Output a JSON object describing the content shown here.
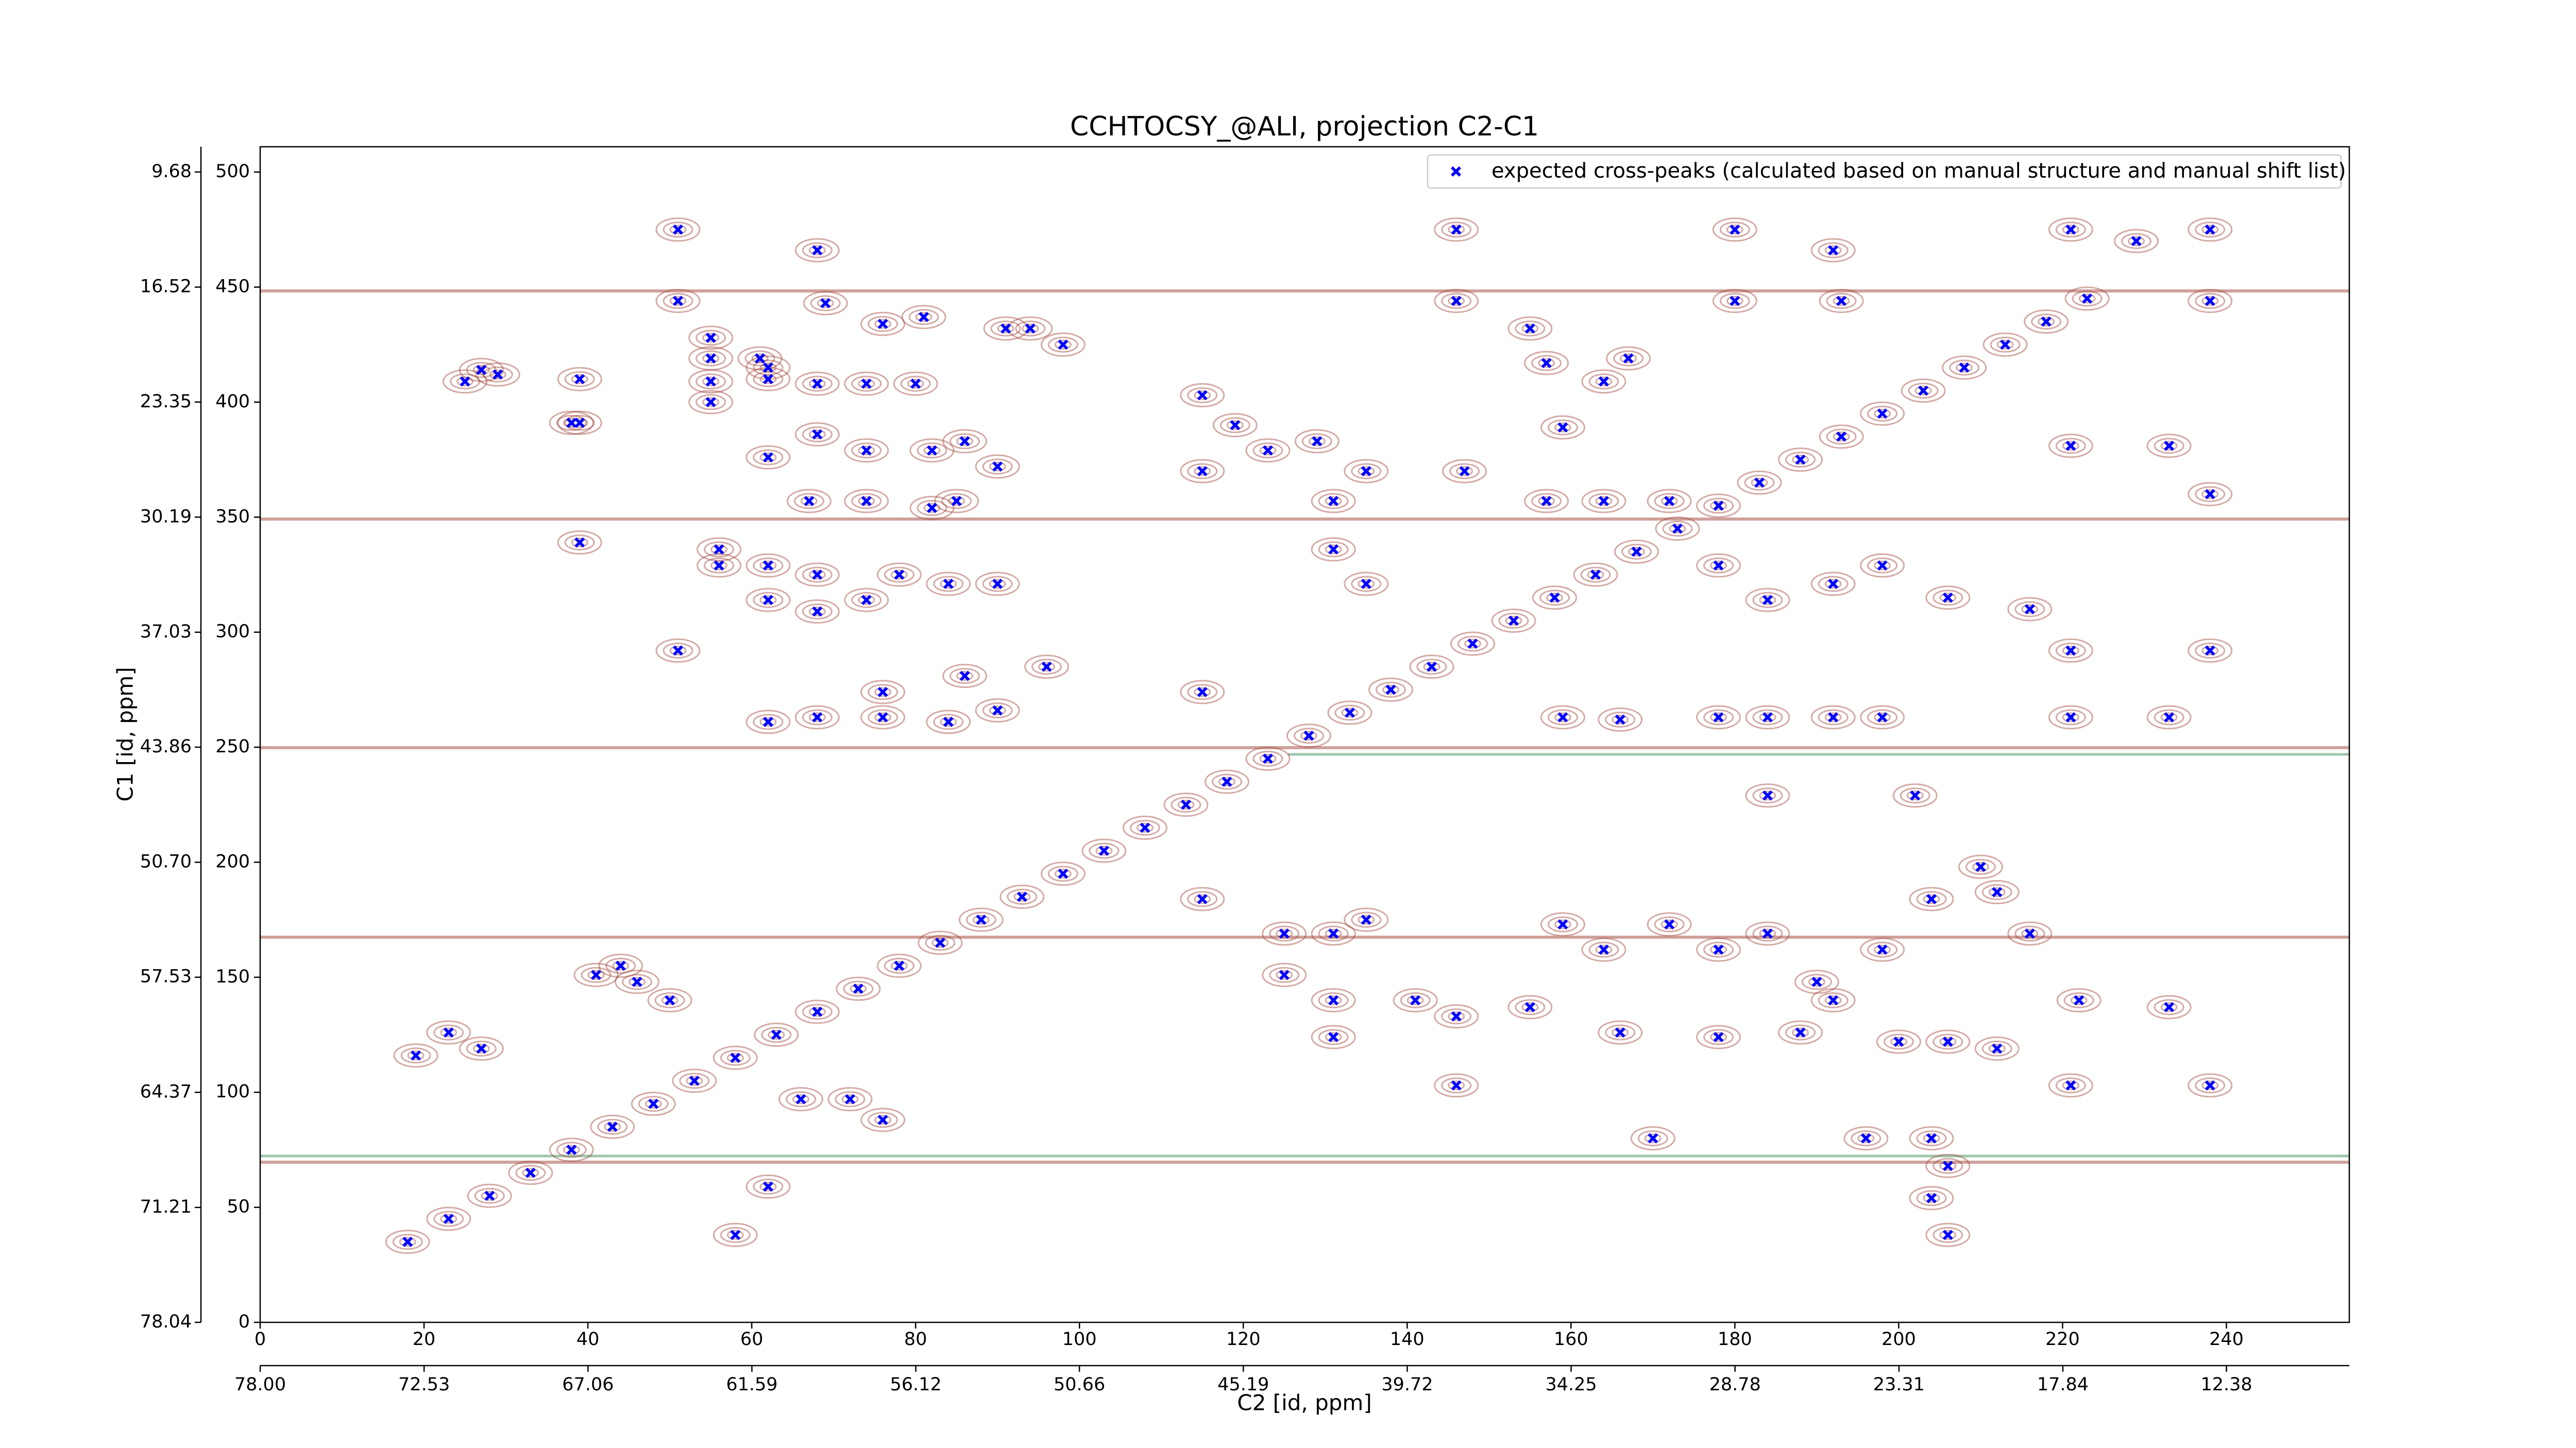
{
  "chart_data": {
    "type": "scatter",
    "title": "CCHTOCSY_@ALI, projection C2-C1",
    "xlabel": "C2 [id, ppm]",
    "ylabel": "C1 [id, ppm]",
    "xlim": [
      0,
      255
    ],
    "ylim": [
      0,
      511
    ],
    "xticks": [
      0,
      20,
      40,
      60,
      80,
      100,
      120,
      140,
      160,
      180,
      200,
      220,
      240
    ],
    "yticks": [
      0,
      50,
      100,
      150,
      200,
      250,
      300,
      350,
      400,
      450,
      500
    ],
    "x2lim": [
      78.0,
      8.28
    ],
    "x2ticks": [
      {
        "value": 78.0,
        "label": "78.00"
      },
      72.53,
      67.06,
      61.59,
      56.12,
      50.66,
      45.19,
      39.72,
      34.25,
      28.78,
      23.31,
      17.84,
      12.38
    ],
    "y2lim": [
      78.04,
      8.18
    ],
    "y2ticks": [
      78.04,
      71.21,
      64.37,
      57.53,
      {
        "value": 50.7,
        "label": "50.70"
      },
      43.86,
      37.03,
      30.19,
      23.35,
      16.52,
      9.68
    ],
    "legend": "upper right",
    "grid": false,
    "series": [
      {
        "name": "expected cross-peaks (calculated based on manual structure and manual shift list)",
        "color": "#0000ff",
        "x": [
          51,
          68,
          51,
          69,
          76,
          81,
          91,
          94,
          98,
          55,
          55,
          55,
          55,
          61,
          62,
          62,
          68,
          74,
          80,
          25,
          27,
          29,
          39,
          39,
          68,
          74,
          82,
          86,
          90,
          62,
          67,
          74,
          82,
          85,
          56,
          56,
          62,
          68,
          78,
          84,
          90,
          62,
          68,
          74,
          51,
          62,
          68,
          76,
          84,
          90,
          96,
          76,
          86,
          115,
          119,
          123,
          129,
          131,
          135,
          147,
          131,
          135,
          115,
          115,
          146,
          146,
          180,
          180,
          192,
          193,
          221,
          229,
          238,
          238,
          155,
          157,
          164,
          167,
          159,
          157,
          164,
          172,
          178,
          184,
          192,
          198,
          206,
          216,
          221,
          233,
          238,
          221,
          238,
          159,
          166,
          178,
          184,
          192,
          198,
          184,
          202,
          221,
          233,
          115,
          125,
          131,
          135,
          125,
          131,
          141,
          131,
          146,
          146,
          159,
          164,
          172,
          178,
          184,
          190,
          192,
          198,
          155,
          166,
          178,
          188,
          200,
          206,
          212,
          210,
          212,
          216,
          222,
          233,
          204,
          221,
          238,
          170,
          196,
          204,
          206,
          204,
          206,
          19,
          27,
          23,
          41,
          46,
          50,
          44,
          66,
          72,
          76,
          62,
          58,
          38,
          39,
          18,
          23,
          28,
          33,
          38,
          43,
          48,
          53,
          58,
          63,
          68,
          73,
          78,
          83,
          88,
          93,
          98,
          103,
          108,
          113,
          118,
          123,
          128,
          133,
          138,
          143,
          148,
          153,
          158,
          163,
          168,
          173,
          178,
          183,
          188,
          193,
          198,
          203,
          208,
          213,
          218,
          223
        ],
        "y": [
          475,
          466,
          444,
          443,
          434,
          437,
          432,
          432,
          425,
          428,
          419,
          409,
          400,
          419,
          410,
          415,
          408,
          408,
          408,
          409,
          414,
          412,
          410,
          391,
          386,
          379,
          379,
          383,
          372,
          376,
          357,
          357,
          354,
          357,
          336,
          329,
          329,
          325,
          325,
          321,
          321,
          314,
          309,
          314,
          292,
          261,
          263,
          263,
          261,
          266,
          285,
          274,
          281,
          403,
          390,
          379,
          383,
          357,
          370,
          370,
          336,
          321,
          274,
          370,
          475,
          444,
          475,
          444,
          466,
          444,
          475,
          470,
          475,
          444,
          432,
          417,
          409,
          419,
          389,
          357,
          357,
          357,
          329,
          314,
          321,
          329,
          315,
          310,
          381,
          381,
          360,
          292,
          292,
          263,
          262,
          263,
          263,
          263,
          263,
          229,
          229,
          263,
          263,
          184,
          169,
          169,
          175,
          151,
          140,
          140,
          124,
          133,
          103,
          173,
          162,
          173,
          162,
          169,
          148,
          140,
          162,
          137,
          126,
          124,
          126,
          122,
          122,
          119,
          198,
          187,
          169,
          140,
          137,
          184,
          103,
          103,
          80,
          80,
          80,
          68,
          54,
          38,
          116,
          119,
          126,
          151,
          148,
          140,
          155,
          97,
          97,
          88,
          59,
          38,
          391,
          339,
          35,
          45,
          55,
          65,
          75,
          85,
          95,
          105,
          115,
          125,
          135,
          145,
          155,
          165,
          175,
          185,
          195,
          205,
          215,
          225,
          235,
          245,
          255,
          265,
          275,
          285,
          295,
          305,
          315,
          325,
          335,
          345,
          355,
          365,
          375,
          385,
          395,
          405,
          415,
          425,
          435,
          445
        ]
      }
    ]
  }
}
